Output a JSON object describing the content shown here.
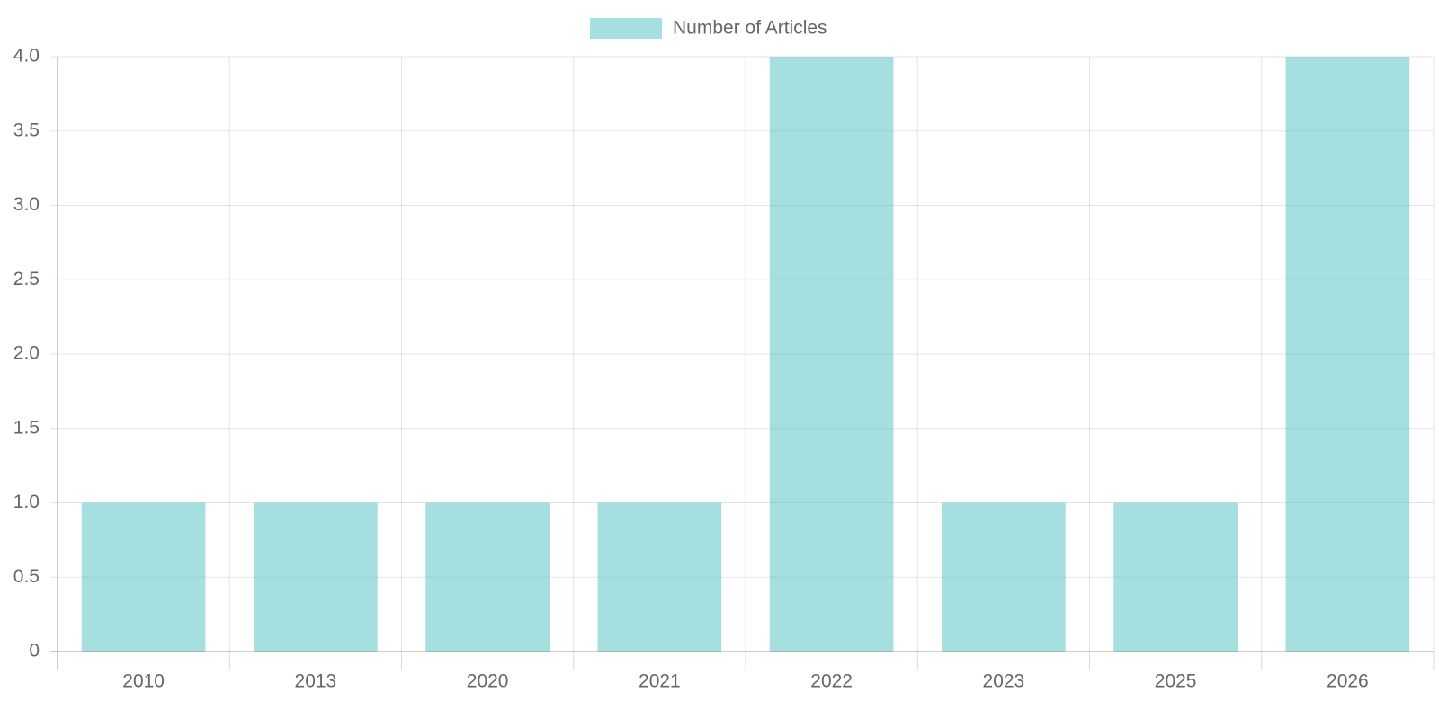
{
  "chart_data": {
    "type": "bar",
    "categories": [
      "2010",
      "2013",
      "2020",
      "2021",
      "2022",
      "2023",
      "2025",
      "2026"
    ],
    "series": [
      {
        "name": "Number of Articles",
        "color": "rgba(75, 192, 192, 0.5)",
        "values": [
          1,
          1,
          1,
          1,
          4,
          1,
          1,
          4
        ]
      }
    ],
    "ylim": [
      0,
      4
    ],
    "yticks": [
      0,
      0.5,
      {
        "value": 1,
        "label": "1.0"
      },
      1.5,
      {
        "value": 2,
        "label": "2.0"
      },
      2.5,
      {
        "value": 3,
        "label": "3.0"
      },
      3.5,
      {
        "value": 4,
        "label": "4.0"
      }
    ],
    "grid": true,
    "legend": "top"
  }
}
